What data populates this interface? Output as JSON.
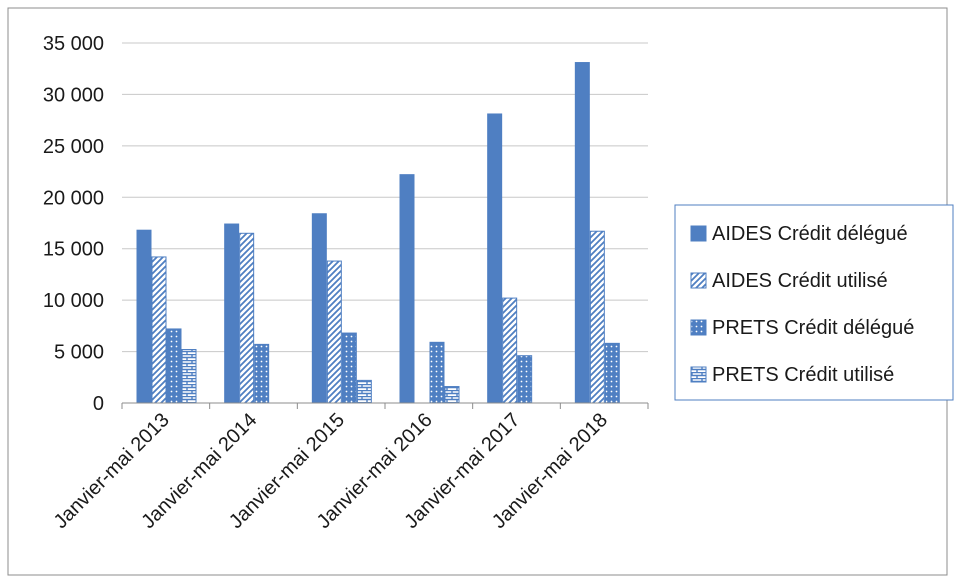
{
  "chart_data": {
    "type": "bar",
    "categories": [
      "Janvier-mai 2013",
      "Janvier-mai 2014",
      "Janvier-mai 2015",
      "Janvier-mai 2016",
      "Janvier-mai 2017",
      "Janvier-mai 2018"
    ],
    "series": [
      {
        "name": "AIDES Crédit délégué",
        "values": [
          16800,
          17400,
          18400,
          22200,
          28100,
          33100
        ],
        "color": "#4f7fc2",
        "pattern": "solid"
      },
      {
        "name": "AIDES Crédit utilisé",
        "values": [
          14200,
          16500,
          13800,
          0,
          10200,
          16700
        ],
        "color": "#4f7fc2",
        "pattern": "diagonal-stripes"
      },
      {
        "name": "PRETS Crédit délégué",
        "values": [
          7200,
          5700,
          6800,
          5900,
          4600,
          5800
        ],
        "color": "#4f7fc2",
        "pattern": "dots"
      },
      {
        "name": "PRETS Crédit utilisé",
        "values": [
          5200,
          0,
          2200,
          1600,
          0,
          0
        ],
        "color": "#4f7fc2",
        "pattern": "brick"
      }
    ],
    "yticks": [
      "0",
      "5 000",
      "10 000",
      "15 000",
      "20 000",
      "25 000",
      "30 000",
      "35 000"
    ],
    "ylim": [
      0,
      35000
    ],
    "title": "",
    "xlabel": "",
    "ylabel": "",
    "grid": true,
    "legend_position": "right"
  }
}
